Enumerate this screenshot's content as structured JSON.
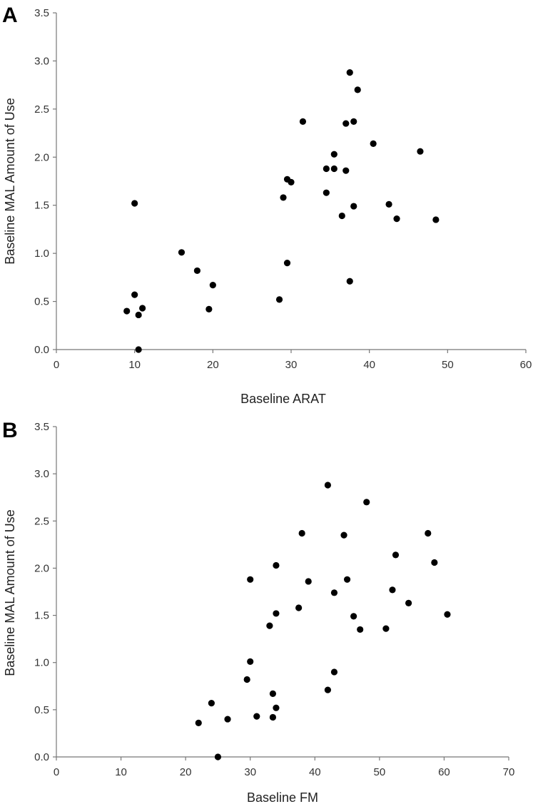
{
  "chart_data": [
    {
      "type": "scatter",
      "panel_label": "A",
      "xlabel": "Baseline ARAT",
      "ylabel": "Baseline MAL Amount of Use",
      "xlim": [
        0,
        60
      ],
      "ylim": [
        0,
        3.5
      ],
      "x_ticks": [
        "0",
        "10",
        "20",
        "30",
        "40",
        "50",
        "60"
      ],
      "y_ticks": [
        "0.0",
        "0.5",
        "1.0",
        "1.5",
        "2.0",
        "2.5",
        "3.0",
        "3.5"
      ],
      "x_tick_values": [
        0,
        10,
        20,
        30,
        40,
        50,
        60
      ],
      "y_tick_values": [
        0,
        0.5,
        1.0,
        1.5,
        2.0,
        2.5,
        3.0,
        3.5
      ],
      "grid": false,
      "points": [
        {
          "x": 9.0,
          "y": 0.4
        },
        {
          "x": 10.0,
          "y": 0.57
        },
        {
          "x": 10.0,
          "y": 1.52
        },
        {
          "x": 10.5,
          "y": 0.36
        },
        {
          "x": 10.5,
          "y": 0.0
        },
        {
          "x": 11.0,
          "y": 0.43
        },
        {
          "x": 16.0,
          "y": 1.01
        },
        {
          "x": 18.0,
          "y": 0.82
        },
        {
          "x": 19.5,
          "y": 0.42
        },
        {
          "x": 20.0,
          "y": 0.67
        },
        {
          "x": 28.5,
          "y": 0.52
        },
        {
          "x": 29.0,
          "y": 1.58
        },
        {
          "x": 29.5,
          "y": 1.77
        },
        {
          "x": 29.5,
          "y": 0.9
        },
        {
          "x": 30.0,
          "y": 1.74
        },
        {
          "x": 31.5,
          "y": 2.37
        },
        {
          "x": 34.5,
          "y": 1.88
        },
        {
          "x": 34.5,
          "y": 1.63
        },
        {
          "x": 35.5,
          "y": 2.03
        },
        {
          "x": 35.5,
          "y": 1.88
        },
        {
          "x": 36.5,
          "y": 1.39
        },
        {
          "x": 37.0,
          "y": 2.35
        },
        {
          "x": 37.0,
          "y": 1.86
        },
        {
          "x": 37.5,
          "y": 2.88
        },
        {
          "x": 37.5,
          "y": 0.71
        },
        {
          "x": 38.0,
          "y": 2.37
        },
        {
          "x": 38.0,
          "y": 1.49
        },
        {
          "x": 38.5,
          "y": 2.7
        },
        {
          "x": 40.5,
          "y": 2.14
        },
        {
          "x": 42.5,
          "y": 1.51
        },
        {
          "x": 43.5,
          "y": 1.36
        },
        {
          "x": 46.5,
          "y": 2.06
        },
        {
          "x": 48.5,
          "y": 1.35
        }
      ]
    },
    {
      "type": "scatter",
      "panel_label": "B",
      "xlabel": "Baseline FM",
      "ylabel": "Baseline MAL Amount of Use",
      "xlim": [
        0,
        70
      ],
      "ylim": [
        0,
        3.5
      ],
      "x_ticks": [
        "0",
        "10",
        "20",
        "30",
        "40",
        "50",
        "60",
        "70"
      ],
      "y_ticks": [
        "0.0",
        "0.5",
        "1.0",
        "1.5",
        "2.0",
        "2.5",
        "3.0",
        "3.5"
      ],
      "x_tick_values": [
        0,
        10,
        20,
        30,
        40,
        50,
        60,
        70
      ],
      "y_tick_values": [
        0,
        0.5,
        1.0,
        1.5,
        2.0,
        2.5,
        3.0,
        3.5
      ],
      "grid": false,
      "points": [
        {
          "x": 22.0,
          "y": 0.36
        },
        {
          "x": 24.0,
          "y": 0.57
        },
        {
          "x": 25.0,
          "y": 0.0
        },
        {
          "x": 26.5,
          "y": 0.4
        },
        {
          "x": 29.5,
          "y": 0.82
        },
        {
          "x": 30.0,
          "y": 1.01
        },
        {
          "x": 30.0,
          "y": 1.88
        },
        {
          "x": 31.0,
          "y": 0.43
        },
        {
          "x": 33.0,
          "y": 1.39
        },
        {
          "x": 33.5,
          "y": 0.67
        },
        {
          "x": 33.5,
          "y": 0.42
        },
        {
          "x": 34.0,
          "y": 0.52
        },
        {
          "x": 34.0,
          "y": 1.52
        },
        {
          "x": 34.0,
          "y": 2.03
        },
        {
          "x": 37.5,
          "y": 1.58
        },
        {
          "x": 38.0,
          "y": 2.37
        },
        {
          "x": 39.0,
          "y": 1.86
        },
        {
          "x": 42.0,
          "y": 2.88
        },
        {
          "x": 42.0,
          "y": 0.71
        },
        {
          "x": 43.0,
          "y": 1.74
        },
        {
          "x": 43.0,
          "y": 0.9
        },
        {
          "x": 44.5,
          "y": 2.35
        },
        {
          "x": 45.0,
          "y": 1.88
        },
        {
          "x": 46.0,
          "y": 1.49
        },
        {
          "x": 47.0,
          "y": 1.35
        },
        {
          "x": 48.0,
          "y": 2.7
        },
        {
          "x": 51.0,
          "y": 1.36
        },
        {
          "x": 52.0,
          "y": 1.77
        },
        {
          "x": 52.5,
          "y": 2.14
        },
        {
          "x": 54.5,
          "y": 1.63
        },
        {
          "x": 57.5,
          "y": 2.37
        },
        {
          "x": 58.5,
          "y": 2.06
        },
        {
          "x": 60.5,
          "y": 1.51
        }
      ]
    }
  ]
}
